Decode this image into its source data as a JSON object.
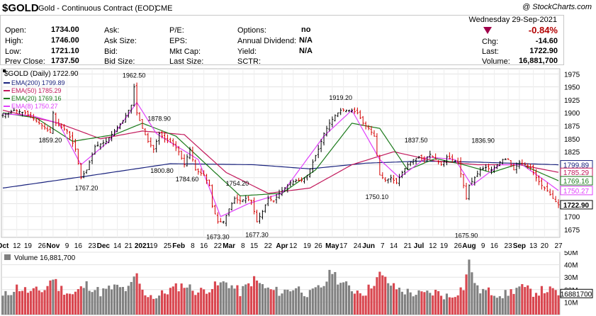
{
  "header": {
    "symbol": "$GOLD",
    "name": "Gold - Continuous Contract (EOD)",
    "exchange": "CME",
    "copyright": "@ StockCharts.com",
    "date": "Wednesday  29-Sep-2021"
  },
  "quote_left": [
    {
      "label": "Open:",
      "value": "1734.00"
    },
    {
      "label": "High:",
      "value": "1746.00"
    },
    {
      "label": "Low:",
      "value": "1721.10"
    },
    {
      "label": "Prev Close:",
      "value": "1737.50"
    }
  ],
  "quote_mid": [
    "Ask:",
    "Ask Size:",
    "Bid:",
    "Bid Size:"
  ],
  "quote_mid2": [
    "P/E:",
    "EPS:",
    "Mkt Cap:",
    "Last Size:"
  ],
  "quote_right": [
    {
      "label": "Options:",
      "value": "no"
    },
    {
      "label": "Annual Dividend:",
      "value": "N/A"
    },
    {
      "label": "Yield:",
      "value": "N/A"
    },
    {
      "label": "SCTR:",
      "value": ""
    }
  ],
  "quote_change": {
    "pct": "-0.84%",
    "chg_label": "Chg:",
    "chg": "-14.60",
    "last_label": "Last:",
    "last": "1722.90",
    "vol_label": "Volume:",
    "volume": "16,881,700",
    "down_color": "#b30000"
  },
  "chart_data": [
    {
      "type": "line",
      "title": "$GOLD (Daily) 1722.90",
      "legend": [
        {
          "name": "EMA(200) 1799.89",
          "color": "#1a237e"
        },
        {
          "name": "EMA(50) 1785.29",
          "color": "#c2185b"
        },
        {
          "name": "EMA(20) 1769.16",
          "color": "#1b7a1b"
        },
        {
          "name": "EMA(8) 1750.27",
          "color": "#e040fb"
        }
      ],
      "legend_placement": "top-left",
      "ylim": [
        1660,
        1985
      ],
      "y_ticks": [
        "1975",
        "1950",
        "1925",
        "1900",
        "1875",
        "1850",
        "1825",
        "1800",
        "1775",
        "1750",
        "1725",
        "1700",
        "1675"
      ],
      "y_tick_values": [
        1975,
        1950,
        1925,
        1900,
        1875,
        1850,
        1825,
        1800,
        1775,
        1750,
        1725,
        1700,
        1675
      ],
      "x_ticks": [
        "Oct",
        "12",
        "19",
        "26",
        "Nov",
        "9",
        "16",
        "23",
        "Dec",
        "14",
        "21",
        "2021",
        "19",
        "25",
        "Feb",
        "8",
        "16",
        "22",
        "Mar",
        "8",
        "15",
        "22",
        "Apr",
        "12",
        "19",
        "26",
        "May",
        "17",
        "24",
        "Jun",
        "7",
        "14",
        "21",
        "Jul",
        "12",
        "19",
        "26",
        "Aug",
        "9",
        "16",
        "23",
        "Sep",
        "13",
        "20",
        "27"
      ],
      "x_month_labels": [
        "Oct",
        "Nov",
        "Dec",
        "2021",
        "Feb",
        "Mar",
        "Apr",
        "May",
        "Jun",
        "Jul",
        "Aug",
        "Sep"
      ],
      "annotations": [
        "1962.50",
        "1878.90",
        "1859.20",
        "1767.20",
        "1800.80",
        "1784.60",
        "1754.20",
        "1673.30",
        "1677.30",
        "1919.20",
        "1750.10",
        "1837.50",
        "1836.90",
        "1675.90"
      ],
      "right_labels": [
        {
          "text": "1799.89",
          "value": 1799.89,
          "color": "#1a237e"
        },
        {
          "text": "1785.29",
          "value": 1785.29,
          "color": "#c2185b"
        },
        {
          "text": "1769.16",
          "value": 1769.16,
          "color": "#1b7a1b"
        },
        {
          "text": "1750.27",
          "value": 1750.27,
          "color": "#e040fb"
        },
        {
          "text": "1722.90",
          "value": 1722.9,
          "color": "#000000"
        }
      ],
      "price_keypoints": [
        [
          0,
          1895
        ],
        [
          4,
          1905
        ],
        [
          8,
          1900
        ],
        [
          13,
          1880
        ],
        [
          17,
          1862
        ],
        [
          18,
          1900
        ],
        [
          19,
          1880
        ],
        [
          23,
          1865
        ],
        [
          26,
          1830
        ],
        [
          28,
          1775
        ],
        [
          30,
          1790
        ],
        [
          33,
          1835
        ],
        [
          37,
          1845
        ],
        [
          40,
          1865
        ],
        [
          43,
          1885
        ],
        [
          46,
          1915
        ],
        [
          47,
          1950
        ],
        [
          48,
          1900
        ],
        [
          50,
          1870
        ],
        [
          52,
          1845
        ],
        [
          54,
          1830
        ],
        [
          56,
          1860
        ],
        [
          58,
          1850
        ],
        [
          61,
          1840
        ],
        [
          63,
          1825
        ],
        [
          65,
          1800
        ],
        [
          67,
          1830
        ],
        [
          69,
          1790
        ],
        [
          72,
          1780
        ],
        [
          74,
          1760
        ],
        [
          75,
          1720
        ],
        [
          77,
          1690
        ],
        [
          79,
          1690
        ],
        [
          81,
          1715
        ],
        [
          83,
          1735
        ],
        [
          85,
          1730
        ],
        [
          87,
          1735
        ],
        [
          89,
          1730
        ],
        [
          91,
          1690
        ],
        [
          93,
          1710
        ],
        [
          95,
          1735
        ],
        [
          97,
          1730
        ],
        [
          99,
          1745
        ],
        [
          101,
          1755
        ],
        [
          103,
          1765
        ],
        [
          105,
          1770
        ],
        [
          107,
          1770
        ],
        [
          109,
          1780
        ],
        [
          111,
          1805
        ],
        [
          113,
          1830
        ],
        [
          115,
          1860
        ],
        [
          117,
          1880
        ],
        [
          119,
          1895
        ],
        [
          121,
          1905
        ],
        [
          123,
          1905
        ],
        [
          125,
          1905
        ],
        [
          127,
          1900
        ],
        [
          129,
          1880
        ],
        [
          131,
          1870
        ],
        [
          133,
          1855
        ],
        [
          135,
          1780
        ],
        [
          137,
          1770
        ],
        [
          139,
          1775
        ],
        [
          141,
          1765
        ],
        [
          143,
          1785
        ],
        [
          145,
          1800
        ],
        [
          147,
          1810
        ],
        [
          149,
          1815
        ],
        [
          151,
          1810
        ],
        [
          153,
          1820
        ],
        [
          155,
          1810
        ],
        [
          157,
          1800
        ],
        [
          159,
          1815
        ],
        [
          161,
          1810
        ],
        [
          163,
          1805
        ],
        [
          165,
          1760
        ],
        [
          166,
          1735
        ],
        [
          167,
          1760
        ],
        [
          169,
          1775
        ],
        [
          171,
          1790
        ],
        [
          173,
          1795
        ],
        [
          175,
          1790
        ],
        [
          177,
          1800
        ],
        [
          179,
          1810
        ],
        [
          181,
          1810
        ],
        [
          183,
          1790
        ],
        [
          185,
          1805
        ],
        [
          187,
          1800
        ],
        [
          189,
          1795
        ],
        [
          191,
          1775
        ],
        [
          193,
          1760
        ],
        [
          195,
          1750
        ],
        [
          197,
          1735
        ],
        [
          199,
          1722.9
        ]
      ],
      "ema200_keypoints": [
        [
          0,
          1755
        ],
        [
          30,
          1778
        ],
        [
          60,
          1802
        ],
        [
          90,
          1800
        ],
        [
          110,
          1792
        ],
        [
          130,
          1803
        ],
        [
          150,
          1807
        ],
        [
          170,
          1805
        ],
        [
          199,
          1799.89
        ]
      ],
      "ema50_keypoints": [
        [
          0,
          1905
        ],
        [
          20,
          1880
        ],
        [
          35,
          1850
        ],
        [
          50,
          1865
        ],
        [
          65,
          1858
        ],
        [
          80,
          1785
        ],
        [
          95,
          1745
        ],
        [
          110,
          1755
        ],
        [
          125,
          1800
        ],
        [
          140,
          1825
        ],
        [
          155,
          1807
        ],
        [
          170,
          1800
        ],
        [
          185,
          1800
        ],
        [
          199,
          1785.29
        ]
      ],
      "ema20_keypoints": [
        [
          0,
          1900
        ],
        [
          12,
          1890
        ],
        [
          25,
          1845
        ],
        [
          40,
          1858
        ],
        [
          50,
          1880
        ],
        [
          62,
          1855
        ],
        [
          75,
          1790
        ],
        [
          85,
          1740
        ],
        [
          100,
          1745
        ],
        [
          112,
          1790
        ],
        [
          125,
          1880
        ],
        [
          135,
          1870
        ],
        [
          145,
          1790
        ],
        [
          155,
          1812
        ],
        [
          165,
          1800
        ],
        [
          175,
          1785
        ],
        [
          185,
          1802
        ],
        [
          199,
          1769.16
        ]
      ],
      "ema8_keypoints": [
        [
          0,
          1898
        ],
        [
          10,
          1895
        ],
        [
          20,
          1880
        ],
        [
          28,
          1800
        ],
        [
          38,
          1845
        ],
        [
          48,
          1920
        ],
        [
          55,
          1860
        ],
        [
          70,
          1810
        ],
        [
          78,
          1700
        ],
        [
          88,
          1725
        ],
        [
          100,
          1745
        ],
        [
          115,
          1855
        ],
        [
          125,
          1905
        ],
        [
          135,
          1810
        ],
        [
          142,
          1775
        ],
        [
          152,
          1815
        ],
        [
          162,
          1810
        ],
        [
          168,
          1760
        ],
        [
          178,
          1800
        ],
        [
          186,
          1800
        ],
        [
          194,
          1770
        ],
        [
          199,
          1750.27
        ]
      ]
    },
    {
      "type": "bar",
      "title": "Volume 16,881,700",
      "ylim": [
        0,
        50
      ],
      "y_ticks": [
        "50M",
        "40M",
        "30M",
        "20M",
        "10M"
      ],
      "y_tick_values": [
        50,
        40,
        30,
        20,
        10
      ],
      "right_label": "16881700",
      "up_color": "#808080",
      "down_color": "#d9464f",
      "volume_keypoints": [
        [
          0,
          14
        ],
        [
          5,
          22
        ],
        [
          10,
          18
        ],
        [
          15,
          20
        ],
        [
          18,
          30
        ],
        [
          20,
          22
        ],
        [
          25,
          16
        ],
        [
          30,
          24
        ],
        [
          35,
          18
        ],
        [
          40,
          22
        ],
        [
          45,
          20
        ],
        [
          48,
          32
        ],
        [
          50,
          18
        ],
        [
          55,
          14
        ],
        [
          60,
          20
        ],
        [
          65,
          24
        ],
        [
          70,
          18
        ],
        [
          75,
          22
        ],
        [
          80,
          26
        ],
        [
          85,
          18
        ],
        [
          90,
          28
        ],
        [
          95,
          20
        ],
        [
          100,
          18
        ],
        [
          105,
          22
        ],
        [
          110,
          16
        ],
        [
          115,
          24
        ],
        [
          118,
          36
        ],
        [
          120,
          28
        ],
        [
          125,
          20
        ],
        [
          130,
          18
        ],
        [
          135,
          32
        ],
        [
          140,
          22
        ],
        [
          145,
          18
        ],
        [
          150,
          16
        ],
        [
          155,
          18
        ],
        [
          160,
          14
        ],
        [
          165,
          22
        ],
        [
          167,
          42
        ],
        [
          170,
          20
        ],
        [
          175,
          18
        ],
        [
          180,
          16
        ],
        [
          185,
          22
        ],
        [
          190,
          18
        ],
        [
          195,
          20
        ],
        [
          199,
          17
        ]
      ]
    }
  ]
}
